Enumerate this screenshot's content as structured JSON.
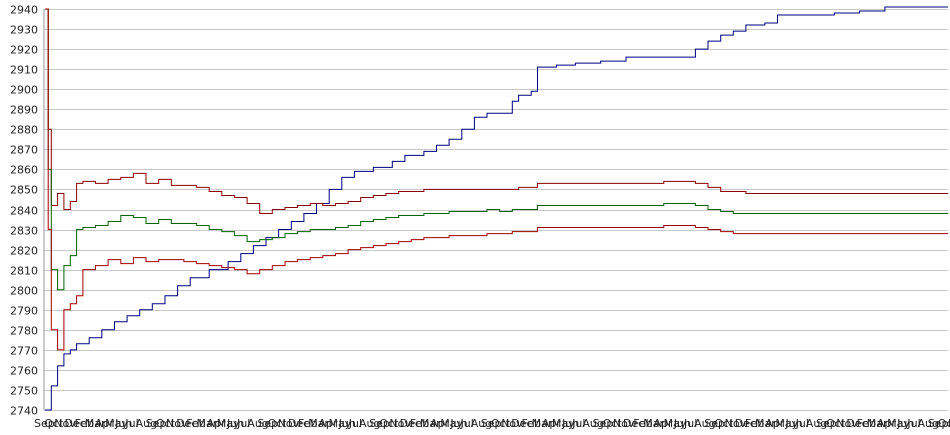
{
  "chart_data": {
    "type": "line",
    "title": "",
    "xlabel": "",
    "ylabel": "",
    "ylim": [
      2740,
      2940
    ],
    "y_ticks": [
      2740,
      2750,
      2760,
      2770,
      2780,
      2790,
      2800,
      2810,
      2820,
      2830,
      2840,
      2850,
      2860,
      2870,
      2880,
      2890,
      2900,
      2910,
      2920,
      2930,
      2940
    ],
    "x_tick_labels": [
      "Sep",
      "Oct",
      "Nov",
      "Dec",
      "Feb",
      "Mar",
      "Apr",
      "May",
      "Jun",
      "Jul",
      "Aug",
      "Sep",
      "Oct",
      "Nov",
      "Dec",
      "Feb",
      "Mar",
      "Apr",
      "May",
      "Jun",
      "Jul",
      "Aug",
      "Sep",
      "Oct",
      "Nov",
      "Dec",
      "Feb",
      "Mar",
      "Apr",
      "May",
      "Jun",
      "Jul",
      "Aug",
      "Sep",
      "Oct",
      "Nov",
      "Dec",
      "Feb",
      "Mar",
      "Apr",
      "May",
      "Jun",
      "Jul",
      "Aug",
      "Sep",
      "Oct",
      "Nov",
      "Dec",
      "Feb",
      "Mar",
      "Apr",
      "May",
      "Jun",
      "Jul",
      "Aug",
      "Sep",
      "Oct",
      "Nov",
      "Dec",
      "Feb",
      "Mar",
      "Apr",
      "May",
      "Jun",
      "Jul",
      "Aug",
      "Sep",
      "Oct",
      "Nov",
      "Dec",
      "Feb",
      "Mar",
      "Apr",
      "May",
      "Jun",
      "Jul",
      "Aug",
      "Sep",
      "Oct",
      "Nov",
      "Dec",
      "Feb",
      "Mar",
      "Apr",
      "May",
      "Jun",
      "Jul",
      "Aug",
      "Sep",
      "Oct",
      "Nov"
    ],
    "grid": true,
    "legend": "none",
    "series": [
      {
        "color": "#000080",
        "values": [
          [
            0,
            2740
          ],
          [
            1,
            2752
          ],
          [
            2,
            2762
          ],
          [
            3,
            2768
          ],
          [
            4,
            2770
          ],
          [
            5,
            2773
          ],
          [
            7,
            2776
          ],
          [
            9,
            2780
          ],
          [
            11,
            2784
          ],
          [
            13,
            2787
          ],
          [
            15,
            2790
          ],
          [
            17,
            2793
          ],
          [
            19,
            2797
          ],
          [
            21,
            2802
          ],
          [
            23,
            2806
          ],
          [
            26,
            2810
          ],
          [
            29,
            2814
          ],
          [
            31,
            2818
          ],
          [
            33,
            2822
          ],
          [
            35,
            2826
          ],
          [
            37,
            2830
          ],
          [
            39,
            2834
          ],
          [
            41,
            2838
          ],
          [
            43,
            2843
          ],
          [
            45,
            2850
          ],
          [
            47,
            2856
          ],
          [
            49,
            2859
          ],
          [
            52,
            2861
          ],
          [
            55,
            2864
          ],
          [
            57,
            2867
          ],
          [
            60,
            2869
          ],
          [
            62,
            2872
          ],
          [
            64,
            2875
          ],
          [
            66,
            2880
          ],
          [
            68,
            2886
          ],
          [
            70,
            2888
          ],
          [
            73,
            2888
          ],
          [
            74,
            2894
          ],
          [
            75,
            2897
          ],
          [
            77,
            2899
          ],
          [
            78,
            2911
          ],
          [
            81,
            2912
          ],
          [
            84,
            2913
          ],
          [
            88,
            2914
          ],
          [
            92,
            2916
          ],
          [
            97,
            2916
          ],
          [
            102,
            2916
          ],
          [
            103,
            2920
          ],
          [
            105,
            2924
          ],
          [
            107,
            2927
          ],
          [
            109,
            2929
          ],
          [
            111,
            2932
          ],
          [
            114,
            2933
          ],
          [
            116,
            2937
          ],
          [
            121,
            2937
          ],
          [
            125,
            2938
          ],
          [
            129,
            2939
          ],
          [
            133,
            2941
          ],
          [
            137,
            2941
          ],
          [
            141,
            2941
          ],
          [
            143,
            2941
          ]
        ]
      },
      {
        "color": "#8b0000",
        "values": [
          [
            0,
            2940
          ],
          [
            0.5,
            2880
          ],
          [
            1,
            2842
          ],
          [
            2,
            2848
          ],
          [
            3,
            2840
          ],
          [
            4,
            2844
          ],
          [
            5,
            2853
          ],
          [
            6,
            2854
          ],
          [
            8,
            2853
          ],
          [
            10,
            2855
          ],
          [
            12,
            2856
          ],
          [
            14,
            2858
          ],
          [
            16,
            2853
          ],
          [
            18,
            2855
          ],
          [
            20,
            2852
          ],
          [
            22,
            2852
          ],
          [
            24,
            2851
          ],
          [
            26,
            2849
          ],
          [
            28,
            2847
          ],
          [
            30,
            2846
          ],
          [
            32,
            2843
          ],
          [
            34,
            2838
          ],
          [
            36,
            2840
          ],
          [
            38,
            2841
          ],
          [
            40,
            2842
          ],
          [
            42,
            2843
          ],
          [
            44,
            2842
          ],
          [
            46,
            2843
          ],
          [
            48,
            2844
          ],
          [
            50,
            2846
          ],
          [
            52,
            2847
          ],
          [
            54,
            2848
          ],
          [
            56,
            2849
          ],
          [
            58,
            2849
          ],
          [
            60,
            2850
          ],
          [
            62,
            2850
          ],
          [
            64,
            2850
          ],
          [
            66,
            2850
          ],
          [
            68,
            2850
          ],
          [
            70,
            2850
          ],
          [
            72,
            2850
          ],
          [
            74,
            2850
          ],
          [
            75,
            2851
          ],
          [
            76,
            2851
          ],
          [
            78,
            2853
          ],
          [
            82,
            2853
          ],
          [
            86,
            2853
          ],
          [
            90,
            2853
          ],
          [
            94,
            2853
          ],
          [
            98,
            2854
          ],
          [
            101,
            2854
          ],
          [
            103,
            2853
          ],
          [
            105,
            2851
          ],
          [
            107,
            2849
          ],
          [
            109,
            2849
          ],
          [
            111,
            2848
          ],
          [
            113,
            2848
          ],
          [
            117,
            2848
          ],
          [
            121,
            2848
          ],
          [
            125,
            2848
          ],
          [
            129,
            2848
          ],
          [
            133,
            2848
          ],
          [
            137,
            2848
          ],
          [
            141,
            2848
          ],
          [
            143,
            2848
          ]
        ]
      },
      {
        "color": "#006400",
        "values": [
          [
            0,
            2940
          ],
          [
            0.5,
            2860
          ],
          [
            1,
            2810
          ],
          [
            2,
            2800
          ],
          [
            3,
            2812
          ],
          [
            4,
            2817
          ],
          [
            5,
            2830
          ],
          [
            6,
            2831
          ],
          [
            8,
            2832
          ],
          [
            10,
            2834
          ],
          [
            12,
            2837
          ],
          [
            14,
            2836
          ],
          [
            16,
            2833
          ],
          [
            18,
            2835
          ],
          [
            20,
            2833
          ],
          [
            22,
            2833
          ],
          [
            24,
            2832
          ],
          [
            26,
            2830
          ],
          [
            28,
            2829
          ],
          [
            30,
            2827
          ],
          [
            32,
            2824
          ],
          [
            34,
            2825
          ],
          [
            36,
            2826
          ],
          [
            38,
            2828
          ],
          [
            40,
            2829
          ],
          [
            42,
            2830
          ],
          [
            44,
            2830
          ],
          [
            46,
            2831
          ],
          [
            48,
            2832
          ],
          [
            50,
            2834
          ],
          [
            52,
            2835
          ],
          [
            54,
            2836
          ],
          [
            56,
            2837
          ],
          [
            58,
            2837
          ],
          [
            60,
            2838
          ],
          [
            62,
            2838
          ],
          [
            64,
            2839
          ],
          [
            66,
            2839
          ],
          [
            68,
            2839
          ],
          [
            70,
            2840
          ],
          [
            72,
            2839
          ],
          [
            74,
            2840
          ],
          [
            76,
            2840
          ],
          [
            78,
            2842
          ],
          [
            82,
            2842
          ],
          [
            86,
            2842
          ],
          [
            90,
            2842
          ],
          [
            94,
            2842
          ],
          [
            98,
            2843
          ],
          [
            101,
            2843
          ],
          [
            103,
            2842
          ],
          [
            105,
            2840
          ],
          [
            107,
            2839
          ],
          [
            109,
            2838
          ],
          [
            111,
            2838
          ],
          [
            113,
            2838
          ],
          [
            117,
            2838
          ],
          [
            121,
            2838
          ],
          [
            125,
            2838
          ],
          [
            129,
            2838
          ],
          [
            133,
            2838
          ],
          [
            137,
            2838
          ],
          [
            141,
            2838
          ],
          [
            143,
            2838
          ]
        ]
      },
      {
        "color": "#a00000",
        "values": [
          [
            0,
            2940
          ],
          [
            0.5,
            2830
          ],
          [
            1,
            2780
          ],
          [
            2,
            2770
          ],
          [
            3,
            2790
          ],
          [
            4,
            2793
          ],
          [
            5,
            2797
          ],
          [
            6,
            2810
          ],
          [
            8,
            2812
          ],
          [
            10,
            2815
          ],
          [
            12,
            2813
          ],
          [
            14,
            2816
          ],
          [
            16,
            2814
          ],
          [
            18,
            2815
          ],
          [
            20,
            2815
          ],
          [
            22,
            2814
          ],
          [
            24,
            2813
          ],
          [
            26,
            2812
          ],
          [
            28,
            2811
          ],
          [
            30,
            2810
          ],
          [
            32,
            2808
          ],
          [
            34,
            2810
          ],
          [
            36,
            2812
          ],
          [
            38,
            2814
          ],
          [
            40,
            2815
          ],
          [
            42,
            2816
          ],
          [
            44,
            2817
          ],
          [
            46,
            2818
          ],
          [
            48,
            2820
          ],
          [
            50,
            2821
          ],
          [
            52,
            2822
          ],
          [
            54,
            2823
          ],
          [
            56,
            2824
          ],
          [
            58,
            2825
          ],
          [
            60,
            2826
          ],
          [
            62,
            2826
          ],
          [
            64,
            2827
          ],
          [
            66,
            2827
          ],
          [
            68,
            2827
          ],
          [
            70,
            2828
          ],
          [
            72,
            2828
          ],
          [
            74,
            2829
          ],
          [
            76,
            2829
          ],
          [
            78,
            2831
          ],
          [
            82,
            2831
          ],
          [
            86,
            2831
          ],
          [
            90,
            2831
          ],
          [
            94,
            2831
          ],
          [
            98,
            2832
          ],
          [
            101,
            2832
          ],
          [
            103,
            2831
          ],
          [
            105,
            2830
          ],
          [
            107,
            2829
          ],
          [
            109,
            2828
          ],
          [
            111,
            2828
          ],
          [
            113,
            2828
          ],
          [
            117,
            2828
          ],
          [
            121,
            2828
          ],
          [
            125,
            2828
          ],
          [
            129,
            2828
          ],
          [
            133,
            2828
          ],
          [
            137,
            2828
          ],
          [
            141,
            2828
          ],
          [
            143,
            2828
          ]
        ]
      }
    ]
  }
}
